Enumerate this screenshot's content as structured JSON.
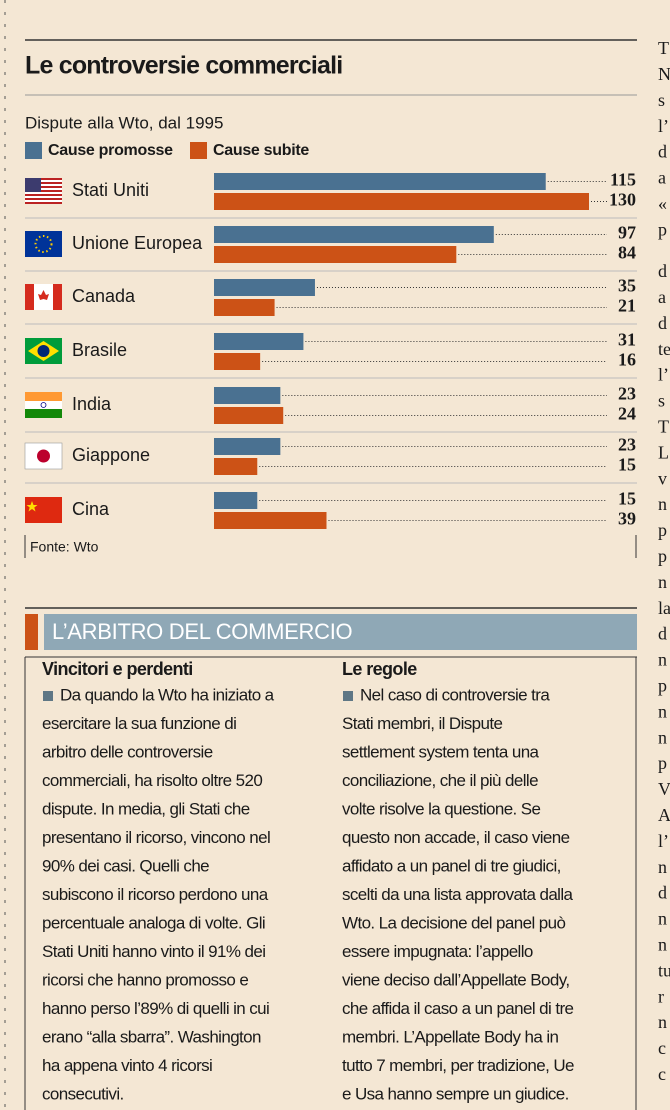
{
  "chart_data": {
    "type": "bar",
    "orientation": "horizontal",
    "title": "Le controversie commerciali",
    "subtitle": "Dispute alla Wto, dal 1995",
    "source": "Fonte: Wto",
    "categories": [
      "Stati Uniti",
      "Unione Europea",
      "Canada",
      "Brasile",
      "India",
      "Giappone",
      "Cina"
    ],
    "series": [
      {
        "name": "Cause promosse",
        "color": "#4a7191",
        "values": [
          115,
          97,
          35,
          31,
          23,
          23,
          15
        ]
      },
      {
        "name": "Cause subite",
        "color": "#cc5216",
        "values": [
          130,
          84,
          21,
          16,
          24,
          15,
          39
        ]
      }
    ],
    "xlim": [
      0,
      130
    ]
  },
  "panel": {
    "title": "L’ARBITRO DEL COMMERCIO",
    "columns": [
      {
        "heading": "Vincitori e perdenti",
        "lines": [
          "Da quando la Wto ha iniziato a",
          "esercitare la sua funzione di",
          "arbitro delle controversie",
          "commerciali, ha risolto oltre 520",
          "dispute. In media, gli Stati che",
          "presentano il ricorso, vincono nel",
          "90% dei casi. Quelli che",
          "subiscono il ricorso perdono una",
          "percentuale analoga di volte. Gli",
          "Stati Uniti hanno vinto il 91% dei",
          "ricorsi che hanno promosso e",
          "hanno perso l’89% di quelli in cui",
          "erano “alla sbarra”. Washington",
          "ha appena vinto 4 ricorsi",
          "consecutivi."
        ]
      },
      {
        "heading": "Le regole",
        "lines": [
          "Nel caso di controversie tra",
          "Stati membri, il Dispute",
          "settlement system tenta una",
          "conciliazione, che il più delle",
          "volte risolve la questione. Se",
          "questo non accade, il caso viene",
          "affidato a un panel di tre giudici,",
          "scelti da una lista approvata dalla",
          "Wto. La decisione del panel può",
          "essere impugnata: l’appello",
          "viene deciso dall’Appellate Body,",
          "che affida il caso a un panel di tre",
          "membri. L’Appellate Body ha in",
          "tutto 7 membri, per tradizione, Ue",
          "e Usa hanno sempre un giudice."
        ]
      }
    ]
  },
  "side_text": {
    "block1": [
      "T",
      "N",
      "s",
      "l’",
      "d",
      "a",
      "«",
      "p"
    ],
    "block2": [
      "d",
      "a",
      "d",
      "te",
      "l’",
      "s",
      "T",
      "L",
      "v",
      "n",
      "p",
      "p",
      "n",
      "la",
      "d",
      "n",
      "p",
      "n",
      "n",
      "p",
      "V",
      "A",
      "l’",
      "n",
      "d",
      "n",
      "n",
      "tu",
      "r",
      "n",
      "c",
      "c"
    ]
  }
}
